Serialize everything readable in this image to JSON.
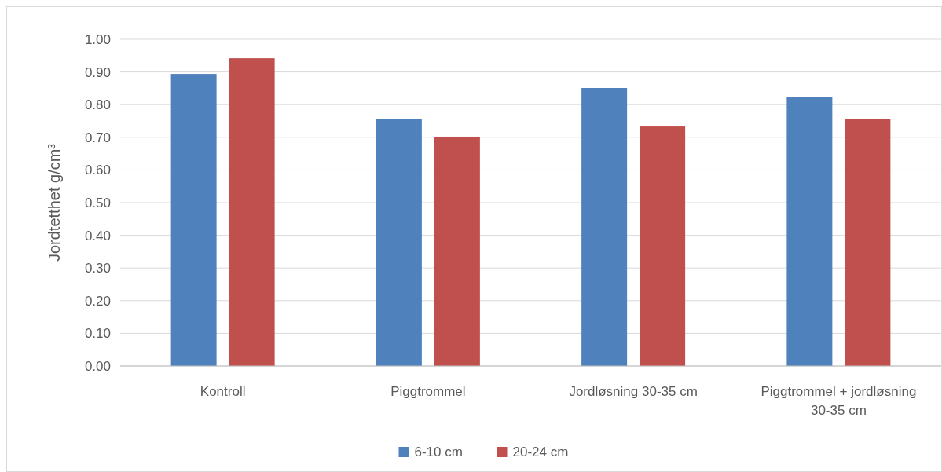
{
  "chart_data": {
    "type": "bar",
    "ylabel": "Jordtetthet g/cm³",
    "categories": [
      "Kontroll",
      "Piggtrommel",
      "Jordløsning 30-35 cm",
      "Piggtrommel + jordløsning 30-35 cm"
    ],
    "series": [
      {
        "name": "6-10 cm",
        "color": "#4f81bd",
        "values": [
          0.894,
          0.755,
          0.851,
          0.824
        ]
      },
      {
        "name": "20-24 cm",
        "color": "#c0504d",
        "values": [
          0.942,
          0.702,
          0.733,
          0.757
        ]
      }
    ],
    "ylim": [
      0,
      1
    ],
    "yticks": [
      {
        "value": 0,
        "label": "0.00"
      },
      {
        "value": 0.1,
        "label": "0.10"
      },
      {
        "value": 0.2,
        "label": "0.20"
      },
      {
        "value": 0.3,
        "label": "0.30"
      },
      {
        "value": 0.4,
        "label": "0.40"
      },
      {
        "value": 0.5,
        "label": "0.50"
      },
      {
        "value": 0.6,
        "label": "0.60"
      },
      {
        "value": 0.7,
        "label": "0.70"
      },
      {
        "value": 0.8,
        "label": "0.80"
      },
      {
        "value": 0.9,
        "label": "0.90"
      },
      {
        "value": 1,
        "label": "1.00"
      }
    ],
    "grid": "y",
    "legend": "bottom"
  }
}
